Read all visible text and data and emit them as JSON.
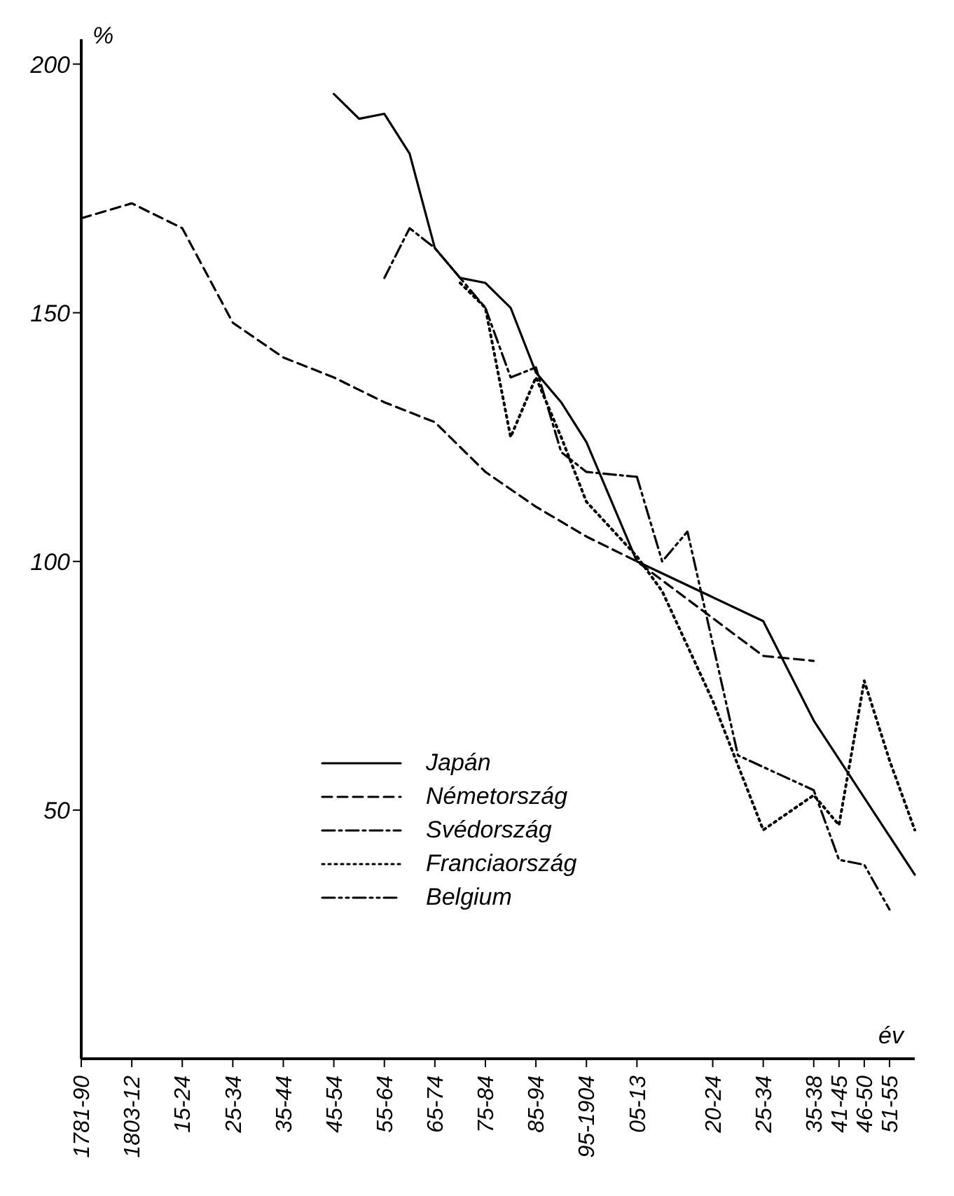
{
  "chart_data": {
    "type": "line",
    "xlabel": "év",
    "ylabel": "%",
    "categories": [
      "1781-90",
      null,
      "1803-12",
      null,
      "15-24",
      null,
      "25-34",
      null,
      "35-44",
      null,
      "45-54",
      null,
      "55-64",
      null,
      "65-74",
      null,
      "75-84",
      null,
      "85-94",
      null,
      "95-1904",
      null,
      "05-13",
      null,
      null,
      "20-24",
      null,
      "25-34",
      null,
      "35-38",
      "41-45",
      "46-50",
      "51-55",
      null
    ],
    "ylim": [
      0,
      205
    ],
    "yticks": [
      50,
      100,
      150,
      200
    ],
    "grid": false,
    "legend": "bottom left",
    "marker": "none",
    "series": [
      {
        "name": "Japán",
        "color": "#000000",
        "line_style": "solid",
        "values": [
          null,
          null,
          null,
          null,
          null,
          null,
          null,
          null,
          null,
          null,
          194,
          189,
          190,
          182,
          163,
          157,
          156,
          151,
          138,
          132,
          124,
          null,
          100,
          null,
          null,
          null,
          null,
          88,
          null,
          68,
          null,
          null,
          null,
          37
        ]
      },
      {
        "name": "Németország",
        "color": "#000000",
        "line_style": "dashed",
        "values": [
          169,
          null,
          172,
          null,
          167,
          null,
          148,
          null,
          141,
          null,
          137,
          null,
          132,
          null,
          128,
          null,
          118,
          null,
          111,
          null,
          105,
          null,
          100,
          null,
          null,
          null,
          null,
          81,
          null,
          80,
          null,
          null,
          null,
          null
        ]
      },
      {
        "name": "Svédország",
        "color": "#000000",
        "line_style": "dashdot",
        "values": [
          null,
          null,
          null,
          null,
          null,
          null,
          null,
          null,
          null,
          null,
          null,
          null,
          157,
          167,
          163,
          157,
          151,
          137,
          139,
          122,
          118,
          null,
          117,
          null,
          null,
          null,
          null,
          null,
          null,
          null,
          null,
          null,
          null,
          null
        ]
      },
      {
        "name": "Franciaország",
        "color": "#000000",
        "line_style": "dotted",
        "values": [
          null,
          null,
          null,
          null,
          null,
          null,
          null,
          null,
          null,
          null,
          null,
          null,
          null,
          null,
          null,
          156,
          151,
          125,
          137,
          125,
          112,
          null,
          101,
          94,
          null,
          72,
          null,
          46,
          null,
          53,
          47,
          76,
          60,
          46
        ]
      },
      {
        "name": "Belgium",
        "color": "#000000",
        "line_style": "dashdotdot",
        "values": [
          null,
          null,
          null,
          null,
          null,
          null,
          null,
          null,
          null,
          null,
          null,
          null,
          null,
          null,
          null,
          null,
          null,
          null,
          null,
          null,
          null,
          null,
          117,
          100,
          106,
          null,
          61,
          null,
          null,
          54,
          40,
          39,
          30,
          null
        ]
      }
    ]
  }
}
